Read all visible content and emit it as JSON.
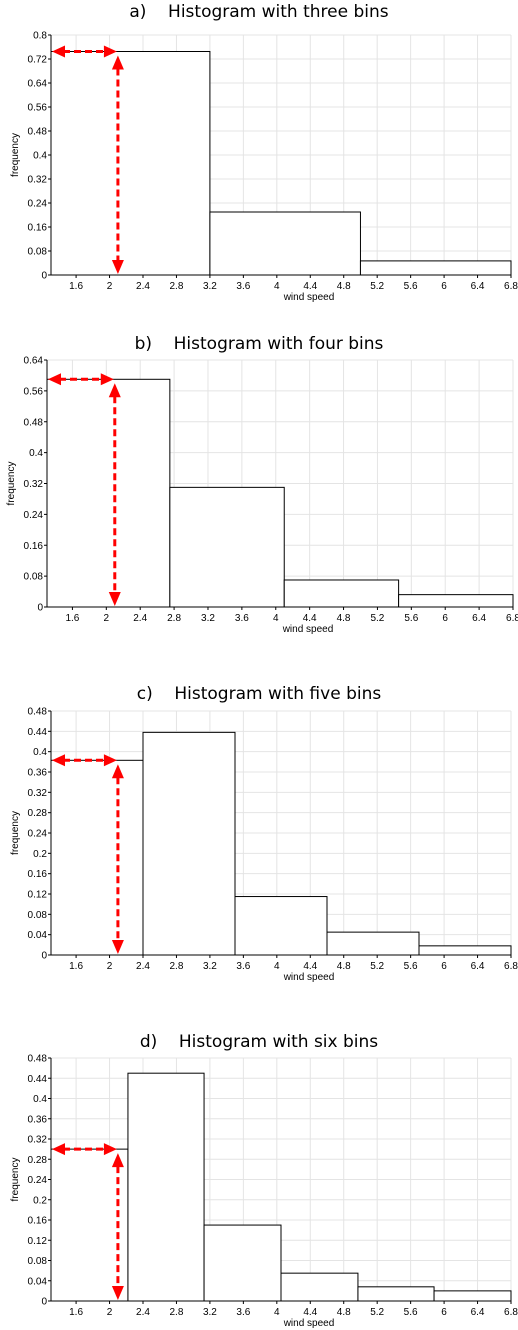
{
  "arrow_color": "#ff0000",
  "chart_data": [
    {
      "type": "bar",
      "panel_label": "a)",
      "title": "Histogram with three bins",
      "xlabel": "wind speed",
      "ylabel": "frequency",
      "xlim": [
        1.3,
        6.8
      ],
      "ylim": [
        0,
        0.8
      ],
      "xticks": [
        "1.6",
        "2",
        "2.4",
        "2.8",
        "3.2",
        "3.6",
        "4",
        "4.4",
        "4.8",
        "5.2",
        "5.6",
        "6",
        "6.4",
        "6.8"
      ],
      "yticks": [
        "0",
        "0.08",
        "0.16",
        "0.24",
        "0.32",
        "0.4",
        "0.48",
        "0.56",
        "0.64",
        "0.72",
        "0.8"
      ],
      "grid": true,
      "bin_edges": [
        1.3,
        3.2,
        5.0,
        6.8
      ],
      "values": [
        0.745,
        0.21,
        0.047
      ],
      "marker": {
        "x": 2.1,
        "y": 0.745
      }
    },
    {
      "type": "bar",
      "panel_label": "b)",
      "title": "Histogram with four bins",
      "xlabel": "wind speed",
      "ylabel": "frequency",
      "xlim": [
        1.3,
        6.8
      ],
      "ylim": [
        0,
        0.64
      ],
      "xticks": [
        "1.6",
        "2",
        "2.4",
        "2.8",
        "3.2",
        "3.6",
        "4",
        "4.4",
        "4.8",
        "5.2",
        "5.6",
        "6",
        "6.4",
        "6.8"
      ],
      "yticks": [
        "0",
        "0.08",
        "0.16",
        "0.24",
        "0.32",
        "0.4",
        "0.48",
        "0.56",
        "0.64"
      ],
      "grid": true,
      "bin_edges": [
        1.3,
        2.75,
        4.1,
        5.45,
        6.8
      ],
      "values": [
        0.59,
        0.31,
        0.07,
        0.032
      ],
      "marker": {
        "x": 2.1,
        "y": 0.59
      }
    },
    {
      "type": "bar",
      "panel_label": "c)",
      "title": "Histogram with five bins",
      "xlabel": "wind speed",
      "ylabel": "frequency",
      "xlim": [
        1.3,
        6.8
      ],
      "ylim": [
        0,
        0.48
      ],
      "xticks": [
        "1.6",
        "2",
        "2.4",
        "2.8",
        "3.2",
        "3.6",
        "4",
        "4.4",
        "4.8",
        "5.2",
        "5.6",
        "6",
        "6.4",
        "6.8"
      ],
      "yticks": [
        "0",
        "0.04",
        "0.08",
        "0.12",
        "0.16",
        "0.2",
        "0.24",
        "0.28",
        "0.32",
        "0.36",
        "0.4",
        "0.44",
        "0.48"
      ],
      "grid": true,
      "bin_edges": [
        1.3,
        2.4,
        3.5,
        4.6,
        5.7,
        6.8
      ],
      "values": [
        0.383,
        0.438,
        0.115,
        0.045,
        0.018
      ],
      "marker": {
        "x": 2.1,
        "y": 0.383
      }
    },
    {
      "type": "bar",
      "panel_label": "d)",
      "title": "Histogram with six bins",
      "xlabel": "wind speed",
      "ylabel": "frequency",
      "xlim": [
        1.3,
        6.8
      ],
      "ylim": [
        0,
        0.48
      ],
      "xticks": [
        "1.6",
        "2",
        "2.4",
        "2.8",
        "3.2",
        "3.6",
        "4",
        "4.4",
        "4.8",
        "5.2",
        "5.6",
        "6",
        "6.4",
        "6.8"
      ],
      "yticks": [
        "0",
        "0.04",
        "0.08",
        "0.12",
        "0.16",
        "0.2",
        "0.24",
        "0.28",
        "0.32",
        "0.36",
        "0.4",
        "0.44",
        "0.48"
      ],
      "grid": true,
      "bin_edges": [
        1.3,
        2.22,
        3.13,
        4.05,
        4.97,
        5.88,
        6.8
      ],
      "values": [
        0.3,
        0.45,
        0.15,
        0.055,
        0.028,
        0.02
      ],
      "marker": {
        "x": 2.1,
        "y": 0.3
      }
    }
  ]
}
